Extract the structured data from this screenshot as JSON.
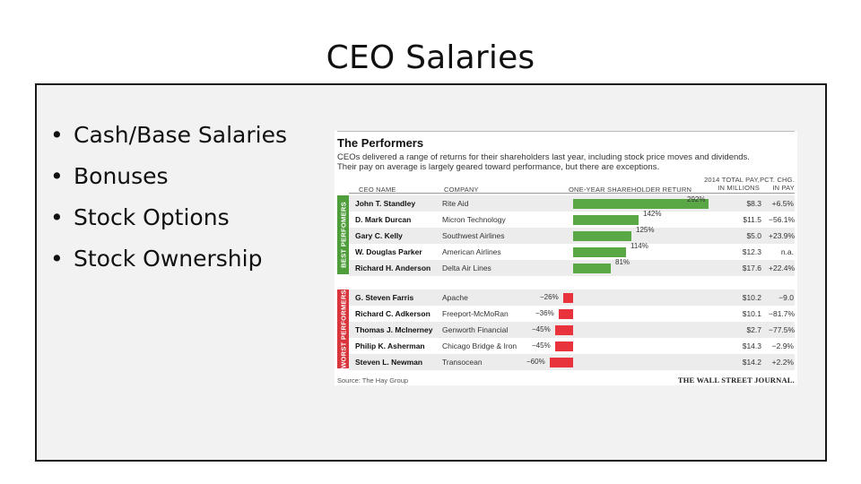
{
  "slide": {
    "title": "CEO Salaries",
    "bullets": [
      "Cash/Base Salaries",
      "Bonuses",
      "Stock Options",
      "Stock Ownership"
    ],
    "bullet_glyph": "•"
  },
  "table": {
    "title": "The Performers",
    "subtitle_line1": "CEOs delivered a range of returns for their shareholders last year, including stock price moves and dividends.",
    "subtitle_line2": "Their pay on average is largely geared toward performance, but there are exceptions.",
    "headers": {
      "ceo_name": "CEO NAME",
      "company": "COMPANY",
      "return": "ONE-YEAR SHAREHOLDER RETURN",
      "pay_line1": "2014 TOTAL PAY,",
      "pay_line2": "IN MILLIONS",
      "chg_line1": "PCT. CHG.",
      "chg_line2": "IN PAY"
    },
    "best_label": "BEST PERFOMERS",
    "worst_label": "WORST PERFORMERS",
    "best_rows": [
      {
        "name": "John T. Standley",
        "company": "Rite Aid",
        "return_label": "292%",
        "return_value": 292,
        "pay": "$8.3",
        "chg": "+6.5%"
      },
      {
        "name": "D. Mark Durcan",
        "company": "Micron Technology",
        "return_label": "142%",
        "return_value": 142,
        "pay": "$11.5",
        "chg": "−56.1%"
      },
      {
        "name": "Gary C. Kelly",
        "company": "Southwest Airlines",
        "return_label": "125%",
        "return_value": 125,
        "pay": "$5.0",
        "chg": "+23.9%"
      },
      {
        "name": "W. Douglas Parker",
        "company": "American Airlines",
        "return_label": "114%",
        "return_value": 114,
        "pay": "$12.3",
        "chg": "n.a."
      },
      {
        "name": "Richard H. Anderson",
        "company": "Delta Air Lines",
        "return_label": "81%",
        "return_value": 81,
        "pay": "$17.6",
        "chg": "+22.4%"
      }
    ],
    "worst_rows": [
      {
        "name": "G. Steven Farris",
        "company": "Apache",
        "return_label": "−26%",
        "return_value": -26,
        "pay": "$10.2",
        "chg": "−9.0"
      },
      {
        "name": "Richard C. Adkerson",
        "company": "Freeport-McMoRan",
        "return_label": "−36%",
        "return_value": -36,
        "pay": "$10.1",
        "chg": "−81.7%"
      },
      {
        "name": "Thomas J. McInerney",
        "company": "Genworth Financial",
        "return_label": "−45%",
        "return_value": -45,
        "pay": "$2.7",
        "chg": "−77.5%"
      },
      {
        "name": "Philip K. Asherman",
        "company": "Chicago Bridge & Iron",
        "return_label": "−45%",
        "return_value": -45,
        "pay": "$14.3",
        "chg": "−2.9%"
      },
      {
        "name": "Steven L. Newman",
        "company": "Transocean",
        "return_label": "−60%",
        "return_value": -60,
        "pay": "$14.2",
        "chg": "+2.2%"
      }
    ],
    "source": "Source: The Hay Group",
    "masthead": "THE WALL STREET JOURNAL.",
    "colors": {
      "best": "#5aa845",
      "worst": "#e8333c"
    }
  }
}
